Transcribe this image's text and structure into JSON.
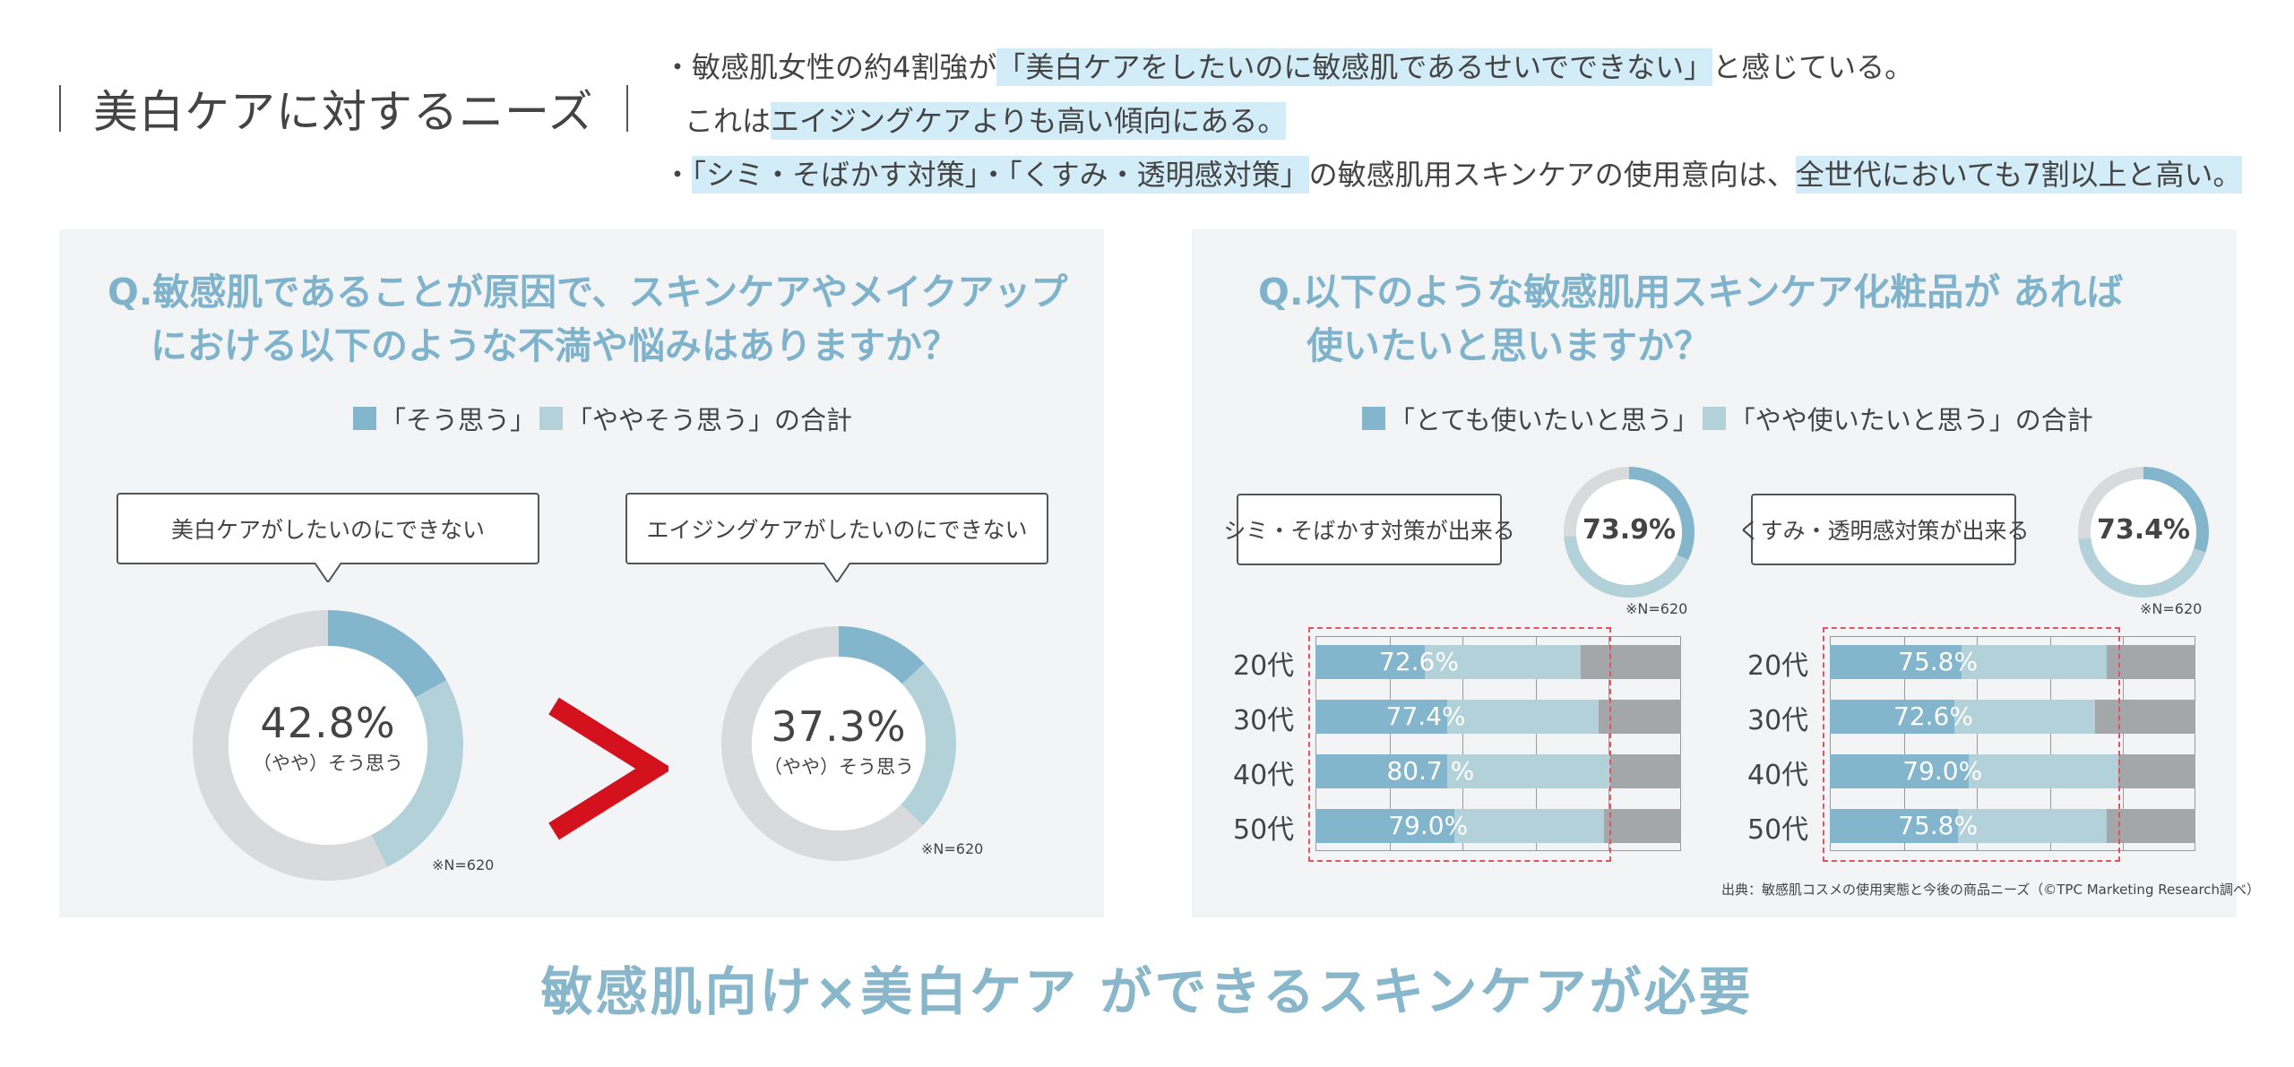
{
  "header": {
    "title": "美白ケアに対するニーズ",
    "bullet1": {
      "prefix": "・",
      "part1": "敏感肌女性の約4割強が",
      "highlight1": "「美白ケアをしたいのに敏感肌であるせいでできない」",
      "part2": "と感じている。"
    },
    "bullet1b": {
      "part1": "これは",
      "highlight1": "エイジングケアよりも高い傾向にある。"
    },
    "bullet2": {
      "prefix": "・",
      "highlight1": "「シミ・そばかす対策」・「くすみ・透明感対策」",
      "part1": "の敏感肌用スキンケアの使用意向は、",
      "highlight2": "全世代においても7割以上と高い。"
    }
  },
  "colors": {
    "dark": "#83b6cc",
    "light": "#b3d1d9",
    "remainder": "#d9dadc",
    "bar_rest": "#a3a7a9",
    "accent_red": "#d4121d",
    "question": "#7fb3cc"
  },
  "left_panel": {
    "question_line1": "Q.敏感肌であることが原因で、スキンケアやメイクアップ",
    "question_line2": "における以下のような不満や悩みはありますか？",
    "legend_dark": "「そう思う」",
    "legend_light": "「ややそう思う」の合計",
    "comparison_symbol": ">"
  },
  "right_panel": {
    "question_line1": "Q.以下のような敏感肌用スキンケア化粧品が あれば",
    "question_line2": "使いたいと思いますか？",
    "legend_dark": "「とても使いたいと思う」",
    "legend_light": "「やや使いたいと思う」の合計"
  },
  "source": "出典：敏感肌コスメの使用実態と今後の商品ニーズ（©TPC Marketing Research調べ）",
  "conclusion": "敏感肌向け×美白ケア ができるスキンケアが必要",
  "chart_data": [
    {
      "type": "pie",
      "subtype": "donut",
      "title": "美白ケアがしたいのにできない",
      "total_label": "42.8%",
      "center_sub": "（やや）そう思う",
      "note": "※N=620",
      "slices": [
        {
          "name": "そう思う",
          "value": 17.0
        },
        {
          "name": "ややそう思う",
          "value": 25.8
        },
        {
          "name": "その他",
          "value": 57.2
        }
      ]
    },
    {
      "type": "pie",
      "subtype": "donut",
      "title": "エイジングケアがしたいのにできない",
      "total_label": "37.3%",
      "center_sub": "（やや）そう思う",
      "note": "※N=620",
      "slices": [
        {
          "name": "そう思う",
          "value": 13.0
        },
        {
          "name": "ややそう思う",
          "value": 24.3
        },
        {
          "name": "その他",
          "value": 62.7
        }
      ]
    },
    {
      "type": "pie",
      "subtype": "donut",
      "title": "シミ・そばかす対策が出来る",
      "total_label": "73.9%",
      "note": "※N=620",
      "slices": [
        {
          "name": "とても使いたいと思う",
          "value": 32.0
        },
        {
          "name": "やや使いたいと思う",
          "value": 41.9
        },
        {
          "name": "その他",
          "value": 26.1
        }
      ]
    },
    {
      "type": "pie",
      "subtype": "donut",
      "title": "くすみ・透明感対策が出来る",
      "total_label": "73.4%",
      "note": "※N=620",
      "slices": [
        {
          "name": "とても使いたいと思う",
          "value": 30.0
        },
        {
          "name": "やや使いたいと思う",
          "value": 43.4
        },
        {
          "name": "その他",
          "value": 26.6
        }
      ]
    },
    {
      "type": "bar",
      "orientation": "horizontal",
      "stacked": true,
      "categories": [
        "20代",
        "30代",
        "40代",
        "50代"
      ],
      "labels": [
        "72.6%",
        "77.4%",
        "80.7 %",
        "79.0%"
      ],
      "xlim": [
        0,
        100
      ],
      "series": [
        {
          "name": "とても使いたいと思う",
          "values": [
            30,
            36,
            36,
            38
          ]
        },
        {
          "name": "やや使いたいと思う",
          "values": [
            42.6,
            41.4,
            44.7,
            41.0
          ]
        },
        {
          "name": "その他",
          "values": [
            27.4,
            22.6,
            19.3,
            21.0
          ]
        }
      ]
    },
    {
      "type": "bar",
      "orientation": "horizontal",
      "stacked": true,
      "categories": [
        "20代",
        "30代",
        "40代",
        "50代"
      ],
      "labels": [
        "75.8%",
        "72.6%",
        "79.0%",
        "75.8%"
      ],
      "xlim": [
        0,
        100
      ],
      "series": [
        {
          "name": "とても使いたいと思う",
          "values": [
            36,
            34,
            38,
            35
          ]
        },
        {
          "name": "やや使いたいと思う",
          "values": [
            39.8,
            38.6,
            41.0,
            40.8
          ]
        },
        {
          "name": "その他",
          "values": [
            24.2,
            27.4,
            21.0,
            24.2
          ]
        }
      ]
    }
  ]
}
